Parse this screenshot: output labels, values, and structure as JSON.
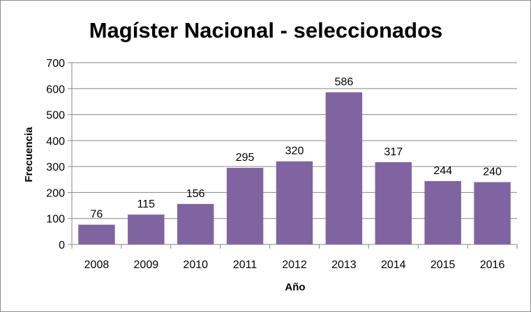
{
  "chart_data": {
    "type": "bar",
    "title": "Magíster Nacional - seleccionados",
    "xlabel": "Año",
    "ylabel": "Frecuencia",
    "categories": [
      "2008",
      "2009",
      "2010",
      "2011",
      "2012",
      "2013",
      "2014",
      "2015",
      "2016"
    ],
    "values": [
      76,
      115,
      156,
      295,
      320,
      586,
      317,
      244,
      240
    ],
    "ylim": [
      0,
      700
    ],
    "yticks": [
      "0",
      "100",
      "200",
      "300",
      "400",
      "500",
      "600",
      "700"
    ],
    "grid": true,
    "legend": "none",
    "data_labels": true,
    "bar_color": "#8064A2",
    "grid_color": "#868686"
  }
}
